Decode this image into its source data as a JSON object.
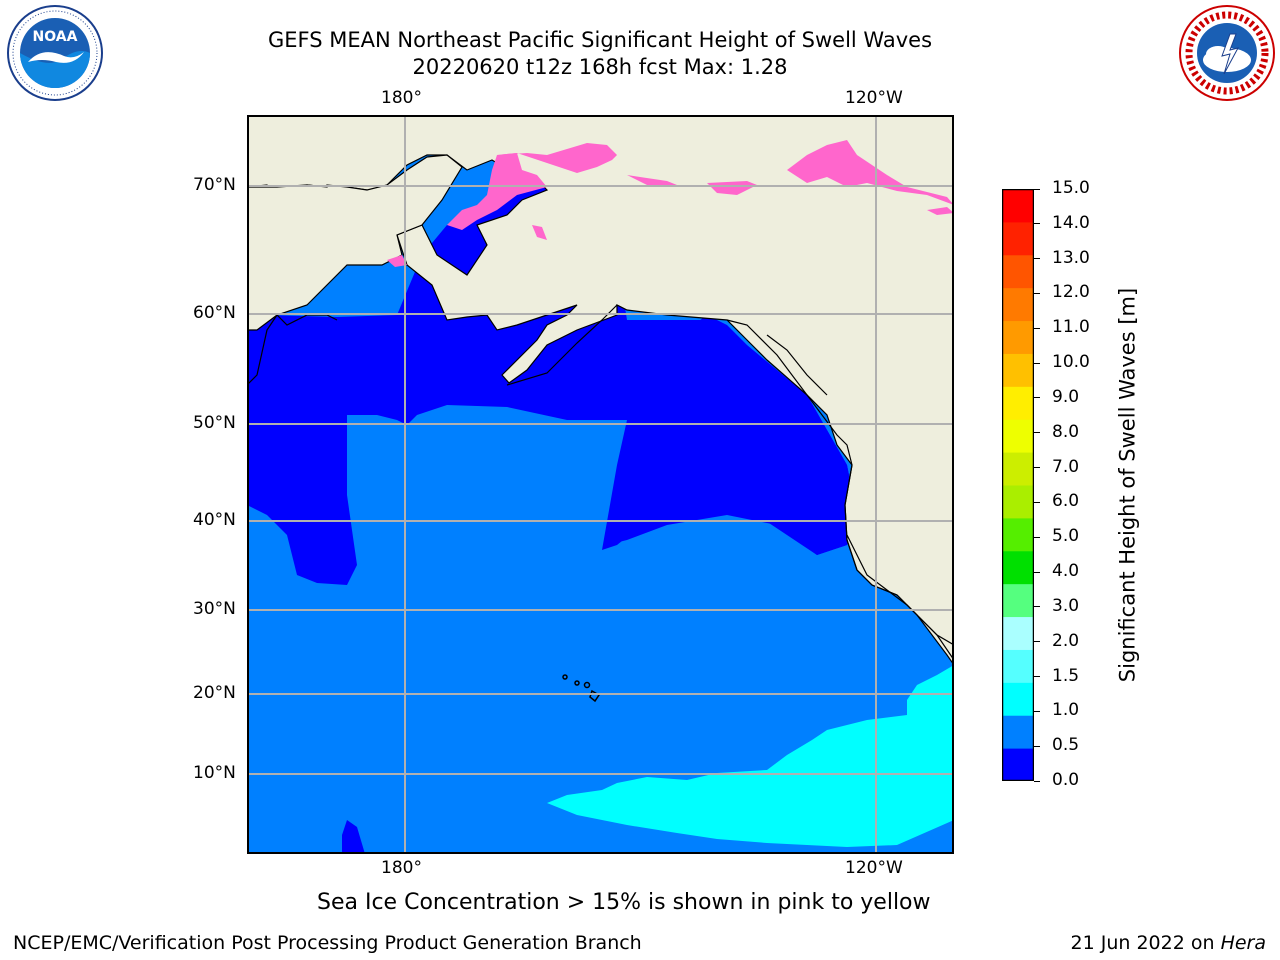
{
  "title_line1": "GEFS MEAN Northeast Pacific Significant Height of Swell Waves",
  "title_line2": "20220620 t12z 168h fcst   Max: 1.28",
  "logo_left": "NOAA",
  "logo_left_ring": "NATIONAL OCEANIC AND ATMOSPHERIC ADMINISTRATION · U.S. DEPARTMENT OF COMMERCE",
  "logo_right_ring": "NATIONAL WEATHER SERVICE",
  "lon_labels": [
    "180°",
    "120°W"
  ],
  "lat_labels": [
    "70°N",
    "60°N",
    "50°N",
    "40°N",
    "30°N",
    "20°N",
    "10°N"
  ],
  "colorbar": {
    "label": "Significant Height of Swell Waves [m]",
    "ticks": [
      "15.0",
      "14.0",
      "13.0",
      "12.0",
      "11.0",
      "10.0",
      "9.0",
      "8.0",
      "7.0",
      "6.0",
      "5.0",
      "4.0",
      "3.0",
      "2.0",
      "1.5",
      "1.0",
      "0.5",
      "0.0"
    ],
    "colors_bottom_to_top": [
      "#0000ff",
      "#0080ff",
      "#00ffff",
      "#55ffff",
      "#aaffff",
      "#55ff7f",
      "#00e000",
      "#55ee00",
      "#aaee00",
      "#ccee00",
      "#eeff00",
      "#ffee00",
      "#ffc000",
      "#ff9a00",
      "#ff7a00",
      "#ff5500",
      "#ff2200",
      "#ff0000"
    ]
  },
  "colors": {
    "land": "#eeeedd",
    "ocean_low": "#0000ff",
    "ocean_mid": "#0080ff",
    "ocean_high": "#00ffff",
    "sea_ice": "#ff66cc",
    "grid": "#b0b0b0"
  },
  "caption": "Sea Ice Concentration > 15% is shown in pink to yellow",
  "footer_left": "NCEP/EMC/Verification Post Processing Product Generation Branch",
  "footer_right_date": "21 Jun 2022 on ",
  "footer_right_host": "Hera"
}
